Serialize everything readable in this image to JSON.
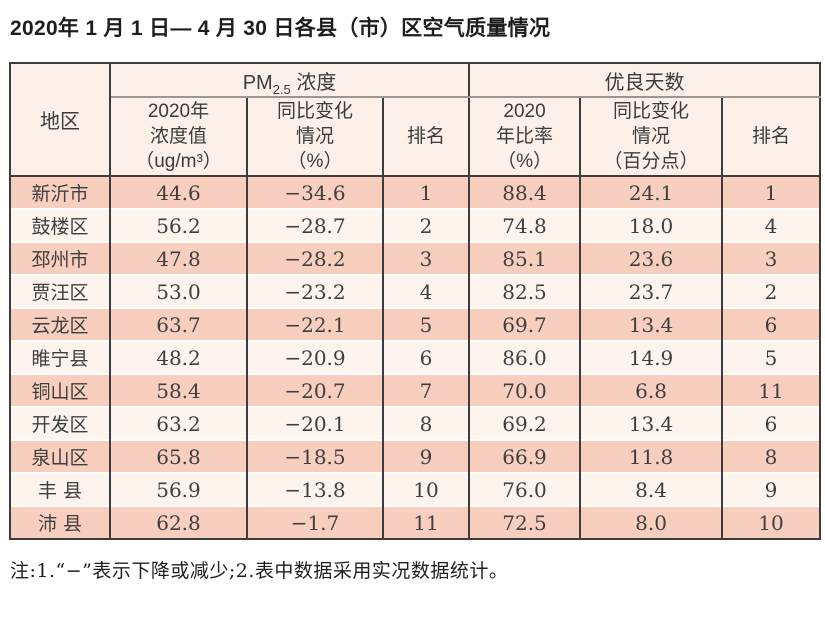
{
  "page": {
    "title": "2020年 1 月 1 日— 4 月 30 日各县（市）区空气质量情况",
    "note": "注:1.“−”表示下降或减少;2.表中数据采用实况数据统计。"
  },
  "colors": {
    "header_bg": "#fcf0e8",
    "row_odd_bg": "#f8cfbf",
    "row_even_bg": "#fdf4ee",
    "border_dark": "#3d3d3d",
    "border_gray": "#9b9893",
    "text": "#3c3c3c",
    "title_color": "#1d1d1d"
  },
  "table": {
    "region_header": "地区",
    "group_headers": {
      "pm25": {
        "prefix": "PM",
        "sub": "2.5",
        "suffix": " 浓度"
      },
      "good_days": "优良天数"
    },
    "sub_headers": {
      "pm_value": "2020年\n浓度值\n（ug/m³）",
      "pm_change": "同比变化\n情况\n（%）",
      "pm_rank": "排名",
      "good_rate": "2020\n年比率\n（%）",
      "good_change": "同比变化\n情况\n（百分点）",
      "good_rank": "排名"
    },
    "rows": [
      {
        "region": "新沂市",
        "pm_value": "44.6",
        "pm_change": "−34.6",
        "pm_rank": "1",
        "good_rate": "88.4",
        "good_change": "24.1",
        "good_rank": "1"
      },
      {
        "region": "鼓楼区",
        "pm_value": "56.2",
        "pm_change": "−28.7",
        "pm_rank": "2",
        "good_rate": "74.8",
        "good_change": "18.0",
        "good_rank": "4"
      },
      {
        "region": "邳州市",
        "pm_value": "47.8",
        "pm_change": "−28.2",
        "pm_rank": "3",
        "good_rate": "85.1",
        "good_change": "23.6",
        "good_rank": "3"
      },
      {
        "region": "贾汪区",
        "pm_value": "53.0",
        "pm_change": "−23.2",
        "pm_rank": "4",
        "good_rate": "82.5",
        "good_change": "23.7",
        "good_rank": "2"
      },
      {
        "region": "云龙区",
        "pm_value": "63.7",
        "pm_change": "−22.1",
        "pm_rank": "5",
        "good_rate": "69.7",
        "good_change": "13.4",
        "good_rank": "6"
      },
      {
        "region": "睢宁县",
        "pm_value": "48.2",
        "pm_change": "−20.9",
        "pm_rank": "6",
        "good_rate": "86.0",
        "good_change": "14.9",
        "good_rank": "5"
      },
      {
        "region": "铜山区",
        "pm_value": "58.4",
        "pm_change": "−20.7",
        "pm_rank": "7",
        "good_rate": "70.0",
        "good_change": "6.8",
        "good_rank": "11"
      },
      {
        "region": "开发区",
        "pm_value": "63.2",
        "pm_change": "−20.1",
        "pm_rank": "8",
        "good_rate": "69.2",
        "good_change": "13.4",
        "good_rank": "6"
      },
      {
        "region": "泉山区",
        "pm_value": "65.8",
        "pm_change": "−18.5",
        "pm_rank": "9",
        "good_rate": "66.9",
        "good_change": "11.8",
        "good_rank": "8"
      },
      {
        "region": "丰 县",
        "pm_value": "56.9",
        "pm_change": "−13.8",
        "pm_rank": "10",
        "good_rate": "76.0",
        "good_change": "8.4",
        "good_rank": "9"
      },
      {
        "region": "沛 县",
        "pm_value": "62.8",
        "pm_change": "−1.7",
        "pm_rank": "11",
        "good_rate": "72.5",
        "good_change": "8.0",
        "good_rank": "10"
      }
    ]
  },
  "chart_data": {
    "type": "table",
    "title": "2020年1月1日—4月30日各县（市）区空气质量情况",
    "column_groups": [
      "地区",
      "PM2.5浓度",
      "优良天数"
    ],
    "columns": [
      "地区",
      "PM2.5浓度 2020年浓度值（ug/m³）",
      "PM2.5浓度 同比变化情况（%）",
      "PM2.5浓度 排名",
      "优良天数 2020年比率（%）",
      "优良天数 同比变化情况（百分点）",
      "优良天数 排名"
    ],
    "rows": [
      [
        "新沂市",
        44.6,
        -34.6,
        1,
        88.4,
        24.1,
        1
      ],
      [
        "鼓楼区",
        56.2,
        -28.7,
        2,
        74.8,
        18.0,
        4
      ],
      [
        "邳州市",
        47.8,
        -28.2,
        3,
        85.1,
        23.6,
        3
      ],
      [
        "贾汪区",
        53.0,
        -23.2,
        4,
        82.5,
        23.7,
        2
      ],
      [
        "云龙区",
        63.7,
        -22.1,
        5,
        69.7,
        13.4,
        6
      ],
      [
        "睢宁县",
        48.2,
        -20.9,
        6,
        86.0,
        14.9,
        5
      ],
      [
        "铜山区",
        58.4,
        -20.7,
        7,
        70.0,
        6.8,
        11
      ],
      [
        "开发区",
        63.2,
        -20.1,
        8,
        69.2,
        13.4,
        6
      ],
      [
        "泉山区",
        65.8,
        -18.5,
        9,
        66.9,
        11.8,
        8
      ],
      [
        "丰县",
        56.9,
        -13.8,
        10,
        76.0,
        8.4,
        9
      ],
      [
        "沛县",
        62.8,
        -1.7,
        11,
        72.5,
        8.0,
        10
      ]
    ],
    "note": "注:1.“−”表示下降或减少;2.表中数据采用实况数据统计。"
  }
}
